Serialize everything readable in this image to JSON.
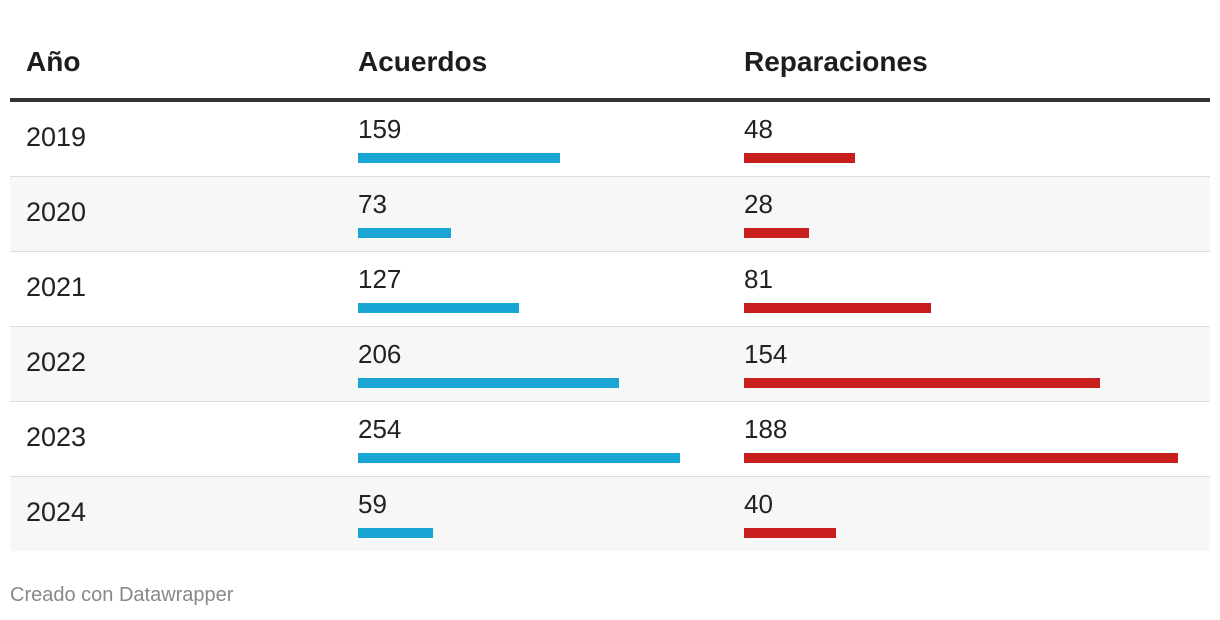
{
  "chart_data": {
    "type": "table",
    "columns": [
      "Año",
      "Acuerdos",
      "Reparaciones"
    ],
    "rows": [
      {
        "year": "2019",
        "acuerdos": 159,
        "reparaciones": 48
      },
      {
        "year": "2020",
        "acuerdos": 73,
        "reparaciones": 28
      },
      {
        "year": "2021",
        "acuerdos": 127,
        "reparaciones": 81
      },
      {
        "year": "2022",
        "acuerdos": 206,
        "reparaciones": 154
      },
      {
        "year": "2023",
        "acuerdos": 254,
        "reparaciones": 188
      },
      {
        "year": "2024",
        "acuerdos": 59,
        "reparaciones": 40
      }
    ],
    "colors": {
      "acuerdos": "#1aa6d4",
      "reparaciones": "#c81e1e"
    }
  },
  "footer": "Creado con Datawrapper"
}
